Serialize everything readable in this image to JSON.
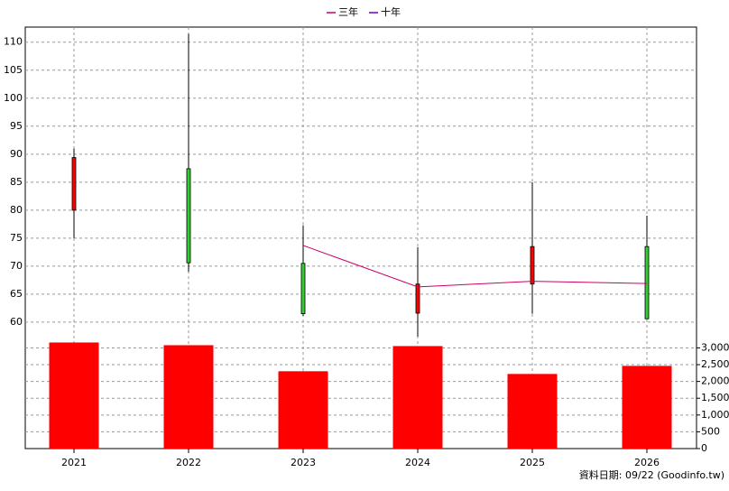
{
  "chart_data": {
    "type": "candlestick",
    "categories": [
      "2021",
      "2022",
      "2023",
      "2024",
      "2025",
      "2026"
    ],
    "open": [
      80,
      87.4,
      70.5,
      61.6,
      66.8,
      73.5
    ],
    "high": [
      91,
      111.5,
      77.3,
      73.4,
      85,
      79
    ],
    "low": [
      75,
      69,
      61.1,
      57.4,
      61.5,
      60.5
    ],
    "close": [
      89.4,
      70.6,
      61.5,
      66.8,
      73.5,
      60.6
    ],
    "up_color": "#ff0000",
    "down_color": "#33cc33",
    "series": [
      {
        "name": "三年",
        "color": "#cc0066",
        "values": [
          null,
          null,
          73.7,
          66.3,
          67.3,
          66.9
        ]
      },
      {
        "name": "十年",
        "color": "#6600cc",
        "values": [
          null,
          null,
          null,
          null,
          null,
          null
        ]
      }
    ],
    "volume": {
      "color": "#ff0000",
      "values": [
        3161,
        3080,
        2304,
        3054,
        2223,
        2464
      ]
    },
    "ylim": [
      56.6,
      112.7
    ],
    "yticks": [
      60,
      65,
      70,
      75,
      80,
      85,
      90,
      95,
      100,
      105,
      110
    ],
    "y2lim": [
      0,
      3200
    ],
    "y2ticks": [
      0,
      500,
      {
        "value": 1000,
        "label": "1,000"
      },
      {
        "value": 1500,
        "label": "1,500"
      },
      {
        "value": 2000,
        "label": "2,000"
      },
      {
        "value": 2500,
        "label": "2,500"
      },
      {
        "value": 3000,
        "label": "3,000"
      }
    ],
    "grid": true,
    "footnote": "資料日期: 09/22  (Goodinfo.tw)"
  }
}
